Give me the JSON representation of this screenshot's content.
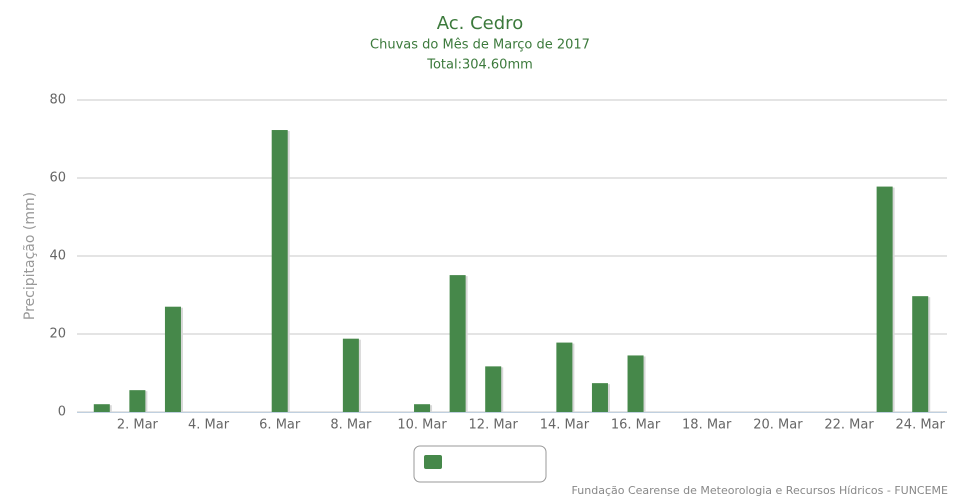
{
  "chart_data": {
    "type": "bar",
    "title": "Ac. Cedro",
    "subtitle": "Chuvas do Mês de Março de 2017",
    "total": "Total:304.60mm",
    "y_label": "Precipitação (mm)",
    "credits": "Fundação Cearense de Meteorologia e Recursos Hídricos - FUNCEME",
    "categories": [
      null,
      "2. Mar",
      null,
      "4. Mar",
      null,
      "6. Mar",
      null,
      "8. Mar",
      null,
      "10. Mar",
      null,
      "12. Mar",
      null,
      "14. Mar",
      null,
      "16. Mar",
      null,
      "18. Mar",
      null,
      "20. Mar",
      null,
      "22. Mar",
      null,
      "24. Mar"
    ],
    "values": [
      2,
      5.6,
      27,
      0,
      0,
      72.3,
      0,
      18.8,
      0,
      2,
      35.1,
      11.7,
      0,
      17.8,
      7.4,
      14.5,
      0,
      0,
      0,
      0,
      0,
      0,
      57.8,
      29.7
    ],
    "color": "#46884a",
    "ylim": [
      0,
      80
    ],
    "yticks": [
      0,
      20,
      40,
      60,
      80
    ],
    "grid": true
  }
}
